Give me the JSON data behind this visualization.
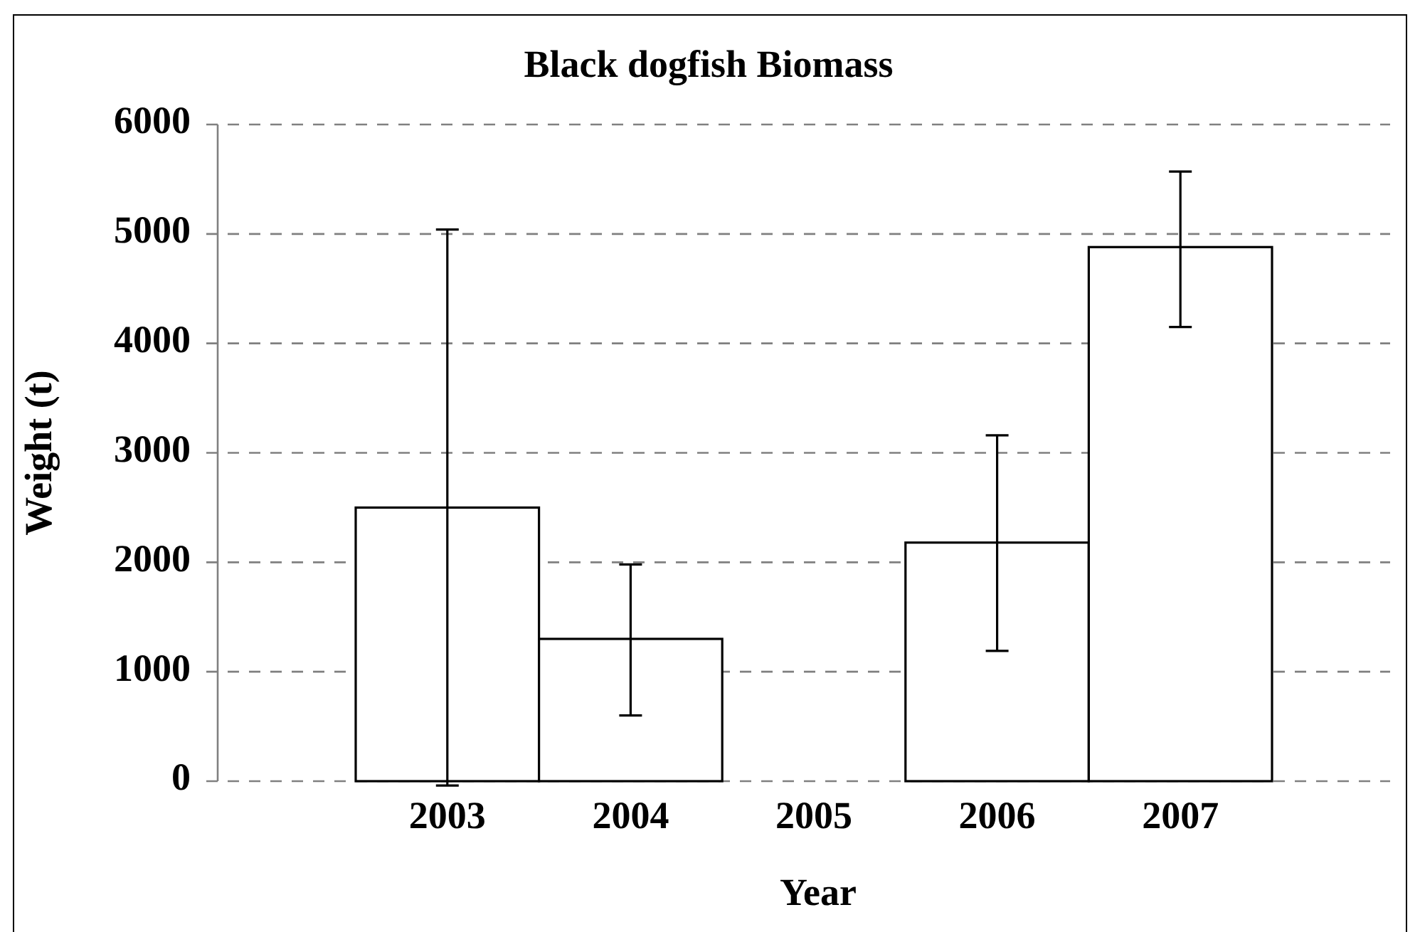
{
  "chart_data": {
    "type": "bar",
    "title": "Black dogfish Biomass",
    "xlabel": "Year",
    "ylabel": "Weight (t)",
    "categories": [
      "2003",
      "2004",
      "2005",
      "2006",
      "2007"
    ],
    "values": [
      2500,
      1300,
      null,
      2180,
      4880
    ],
    "errors": [
      [
        -40,
        5040
      ],
      [
        600,
        1980
      ],
      null,
      [
        1190,
        3160
      ],
      [
        4150,
        5570
      ]
    ],
    "color": "#ffffff",
    "ylim": [
      0,
      6000
    ],
    "yticks": [
      0,
      1000,
      2000,
      3000,
      4000,
      5000,
      6000
    ],
    "grid": "y"
  }
}
